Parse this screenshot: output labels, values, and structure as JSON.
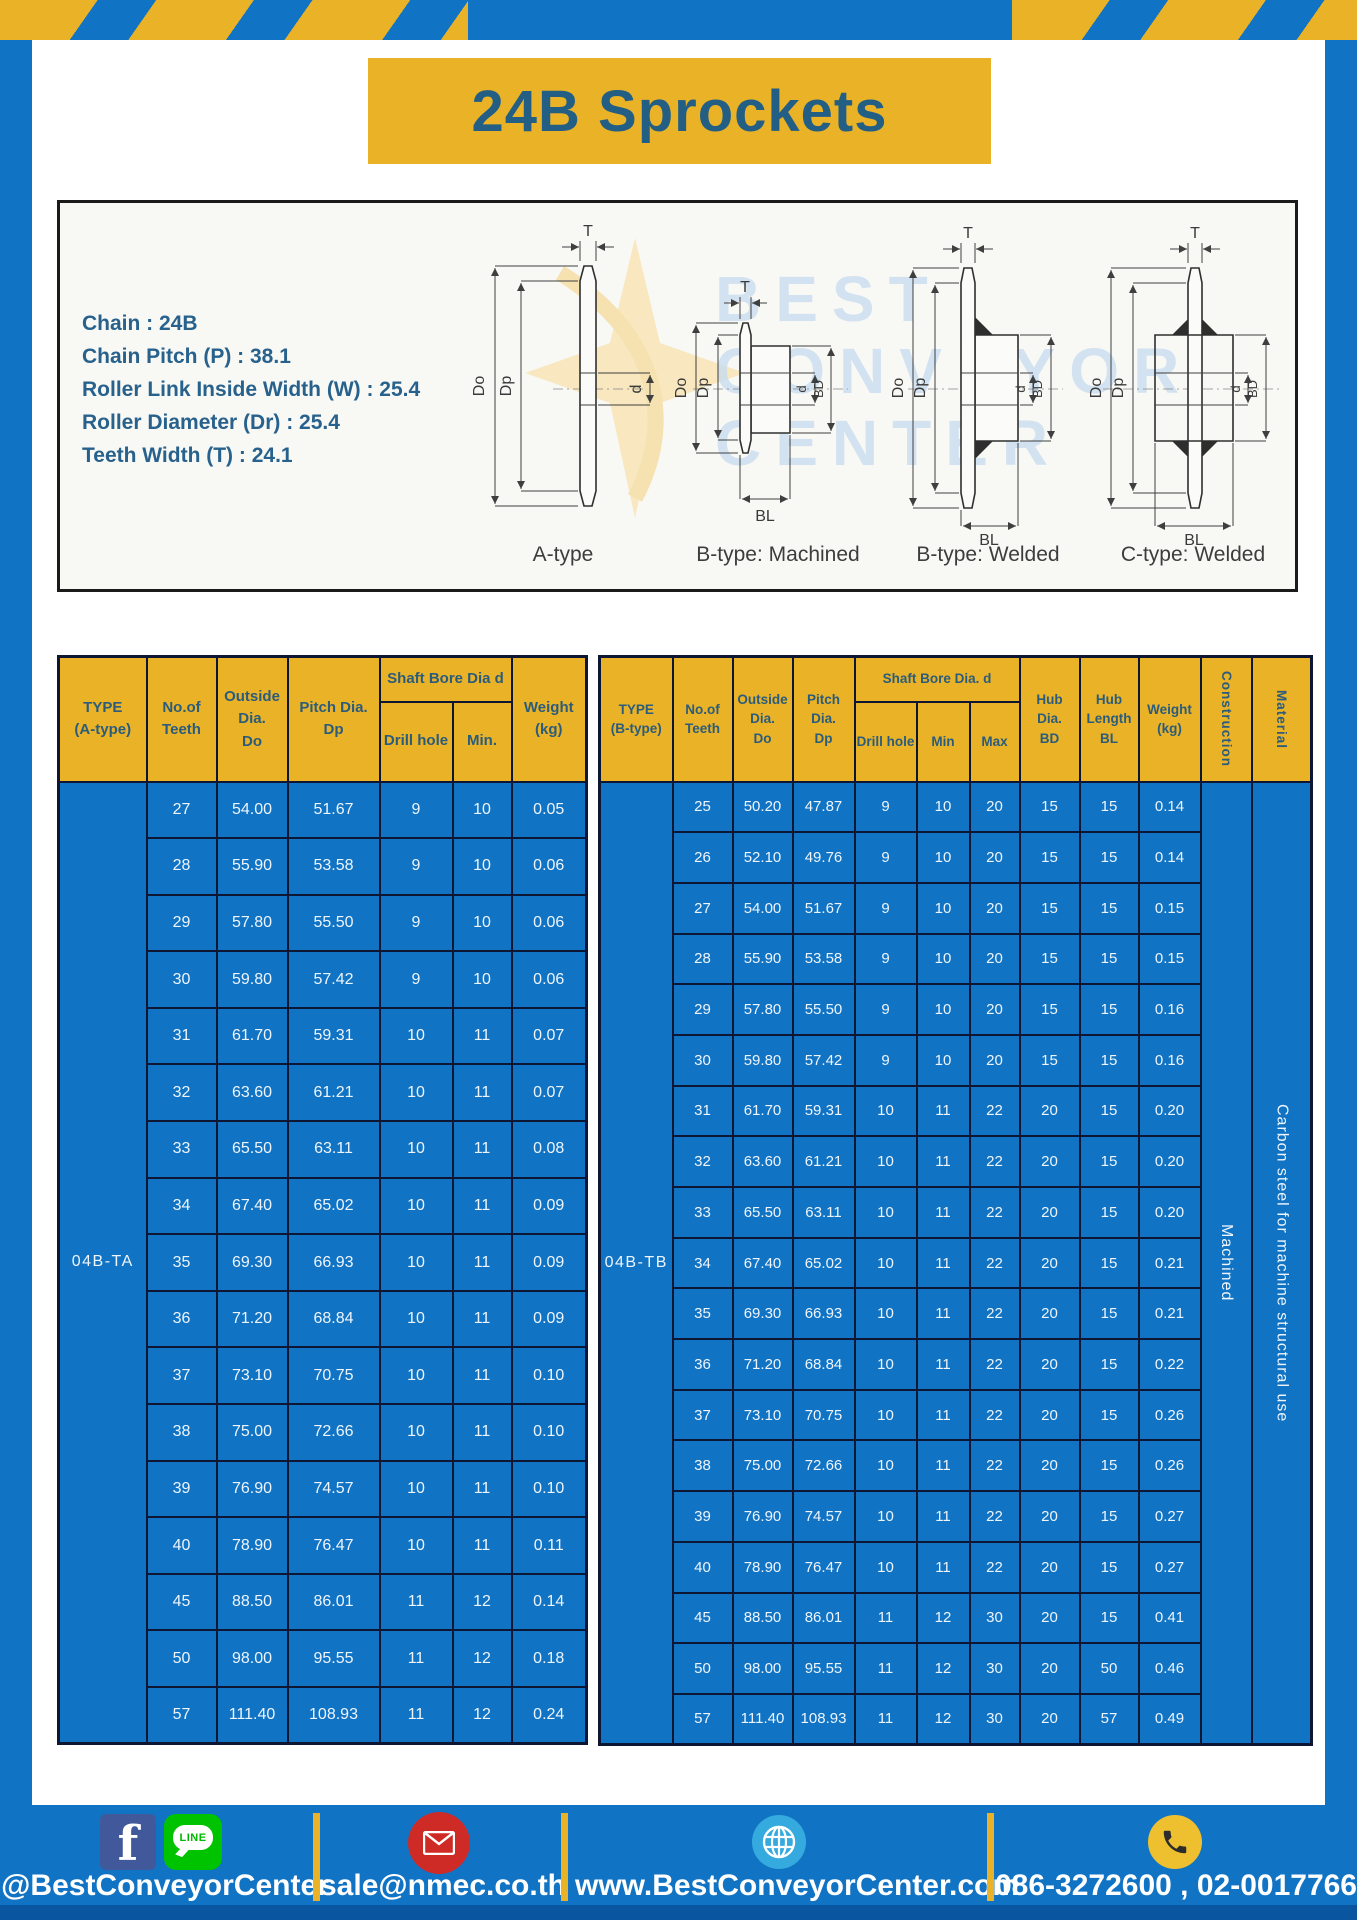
{
  "title": "24B Sprockets",
  "specs": {
    "lines": [
      "Chain  : 24B",
      "Chain Pitch (P)  :  38.1",
      "Roller Link Inside Width (W)  :  25.4",
      "Roller Diameter (Dr)  : 25.4",
      "Teeth Width (T)  :  24.1"
    ]
  },
  "drawings": {
    "captions": [
      "A-type",
      "B-type: Machined",
      "B-type: Welded",
      "C-type: Welded"
    ],
    "dims": {
      "t": "T",
      "outside": "Do",
      "pitch": "Dp",
      "bore": "d",
      "hub_dia": "BD",
      "hub_len": "BL"
    }
  },
  "watermark": {
    "words": [
      "BEST",
      "CONVEYOR",
      "CENTER"
    ]
  },
  "tables": {
    "left": {
      "type_label": "04B-TA",
      "headers": {
        "type": "TYPE\n(A-type)",
        "teeth": "No.of\nTeeth",
        "outside": "Outside\nDia.\nDo",
        "pitch": "Pitch Dia.\nDp",
        "shaft_bore": "Shaft Bore Dia d",
        "drill": "Drill hole",
        "min": "Min.",
        "weight": "Weight\n(kg)"
      },
      "rows": [
        [
          "27",
          "54.00",
          "51.67",
          "9",
          "10",
          "0.05"
        ],
        [
          "28",
          "55.90",
          "53.58",
          "9",
          "10",
          "0.06"
        ],
        [
          "29",
          "57.80",
          "55.50",
          "9",
          "10",
          "0.06"
        ],
        [
          "30",
          "59.80",
          "57.42",
          "9",
          "10",
          "0.06"
        ],
        [
          "31",
          "61.70",
          "59.31",
          "10",
          "11",
          "0.07"
        ],
        [
          "32",
          "63.60",
          "61.21",
          "10",
          "11",
          "0.07"
        ],
        [
          "33",
          "65.50",
          "63.11",
          "10",
          "11",
          "0.08"
        ],
        [
          "34",
          "67.40",
          "65.02",
          "10",
          "11",
          "0.09"
        ],
        [
          "35",
          "69.30",
          "66.93",
          "10",
          "11",
          "0.09"
        ],
        [
          "36",
          "71.20",
          "68.84",
          "10",
          "11",
          "0.09"
        ],
        [
          "37",
          "73.10",
          "70.75",
          "10",
          "11",
          "0.10"
        ],
        [
          "38",
          "75.00",
          "72.66",
          "10",
          "11",
          "0.10"
        ],
        [
          "39",
          "76.90",
          "74.57",
          "10",
          "11",
          "0.10"
        ],
        [
          "40",
          "78.90",
          "76.47",
          "10",
          "11",
          "0.11"
        ],
        [
          "45",
          "88.50",
          "86.01",
          "11",
          "12",
          "0.14"
        ],
        [
          "50",
          "98.00",
          "95.55",
          "11",
          "12",
          "0.18"
        ],
        [
          "57",
          "111.40",
          "108.93",
          "11",
          "12",
          "0.24"
        ]
      ]
    },
    "right": {
      "type_label": "04B-TB",
      "headers": {
        "type": "TYPE\n(B-type)",
        "teeth": "No.of\nTeeth",
        "outside": "Outside\nDia.\nDo",
        "pitch": "Pitch\nDia.\nDp",
        "shaft_bore": "Shaft Bore Dia.  d",
        "drill": "Drill hole",
        "min": "Min",
        "max": "Max",
        "hub_dia": "Hub\nDia.\nBD",
        "hub_len": "Hub\nLength\nBL",
        "weight": "Weight\n(kg)",
        "construction": "Construction",
        "material": "Material"
      },
      "construction_value": "Machined",
      "material_value": "Carbon steel for machine structural use",
      "rows": [
        [
          "25",
          "50.20",
          "47.87",
          "9",
          "10",
          "20",
          "15",
          "15",
          "0.14"
        ],
        [
          "26",
          "52.10",
          "49.76",
          "9",
          "10",
          "20",
          "15",
          "15",
          "0.14"
        ],
        [
          "27",
          "54.00",
          "51.67",
          "9",
          "10",
          "20",
          "15",
          "15",
          "0.15"
        ],
        [
          "28",
          "55.90",
          "53.58",
          "9",
          "10",
          "20",
          "15",
          "15",
          "0.15"
        ],
        [
          "29",
          "57.80",
          "55.50",
          "9",
          "10",
          "20",
          "15",
          "15",
          "0.16"
        ],
        [
          "30",
          "59.80",
          "57.42",
          "9",
          "10",
          "20",
          "15",
          "15",
          "0.16"
        ],
        [
          "31",
          "61.70",
          "59.31",
          "10",
          "11",
          "22",
          "20",
          "15",
          "0.20"
        ],
        [
          "32",
          "63.60",
          "61.21",
          "10",
          "11",
          "22",
          "20",
          "15",
          "0.20"
        ],
        [
          "33",
          "65.50",
          "63.11",
          "10",
          "11",
          "22",
          "20",
          "15",
          "0.20"
        ],
        [
          "34",
          "67.40",
          "65.02",
          "10",
          "11",
          "22",
          "20",
          "15",
          "0.21"
        ],
        [
          "35",
          "69.30",
          "66.93",
          "10",
          "11",
          "22",
          "20",
          "15",
          "0.21"
        ],
        [
          "36",
          "71.20",
          "68.84",
          "10",
          "11",
          "22",
          "20",
          "15",
          "0.22"
        ],
        [
          "37",
          "73.10",
          "70.75",
          "10",
          "11",
          "22",
          "20",
          "15",
          "0.26"
        ],
        [
          "38",
          "75.00",
          "72.66",
          "10",
          "11",
          "22",
          "20",
          "15",
          "0.26"
        ],
        [
          "39",
          "76.90",
          "74.57",
          "10",
          "11",
          "22",
          "20",
          "15",
          "0.27"
        ],
        [
          "40",
          "78.90",
          "76.47",
          "10",
          "11",
          "22",
          "20",
          "15",
          "0.27"
        ],
        [
          "45",
          "88.50",
          "86.01",
          "11",
          "12",
          "30",
          "20",
          "15",
          "0.41"
        ],
        [
          "50",
          "98.00",
          "95.55",
          "11",
          "12",
          "30",
          "20",
          "50",
          "0.46"
        ],
        [
          "57",
          "111.40",
          "108.93",
          "11",
          "12",
          "30",
          "20",
          "57",
          "0.49"
        ]
      ]
    }
  },
  "footer": {
    "social_handle": "@BestConveyorCenter",
    "email": "sale@nmec.co.th",
    "website": "www.BestConveyorCenter.com",
    "phone": "086-3272600 , 02-0017766",
    "facebook_glyph": "f",
    "line_label": "LINE"
  }
}
